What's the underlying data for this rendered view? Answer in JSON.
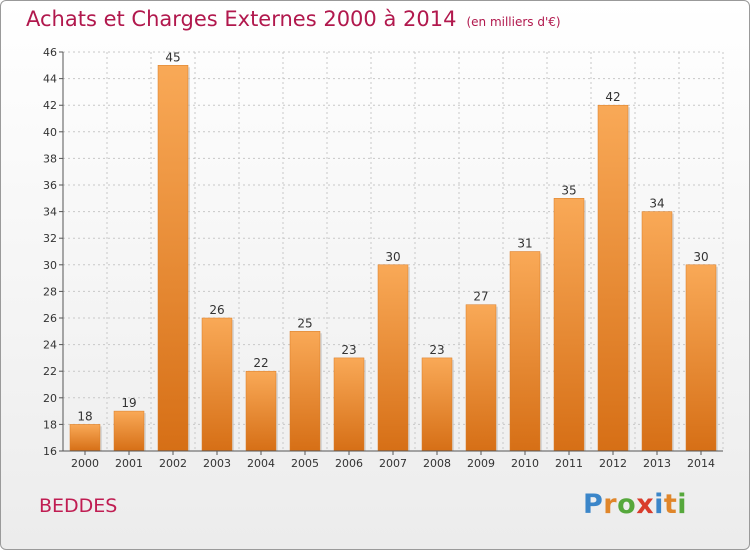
{
  "header": {
    "title": "Achats et Charges Externes 2000 à 2014",
    "unit": "(en milliers d'€)"
  },
  "footer": {
    "place": "BEDDES",
    "logo": "Proxiti"
  },
  "colors": {
    "title": "#b1184d",
    "bar_light": "#f9a957",
    "bar_dark": "#d66f16",
    "logo": [
      "#3b86c9",
      "#e0862a",
      "#56a83c",
      "#d93c2c",
      "#3b86c9",
      "#e0862a",
      "#56a83c"
    ]
  },
  "chart_data": {
    "type": "bar",
    "title": "Achats et Charges Externes 2000 à 2014",
    "subtitle": "(en milliers d'€)",
    "xlabel": "",
    "ylabel": "",
    "categories": [
      "2000",
      "2001",
      "2002",
      "2003",
      "2004",
      "2005",
      "2006",
      "2007",
      "2008",
      "2009",
      "2010",
      "2011",
      "2012",
      "2013",
      "2014"
    ],
    "values": [
      18,
      19,
      45,
      26,
      22,
      25,
      23,
      30,
      23,
      27,
      31,
      35,
      42,
      34,
      30
    ],
    "ylim": [
      16,
      46
    ],
    "yticks": [
      16,
      18,
      20,
      22,
      24,
      26,
      28,
      30,
      32,
      34,
      36,
      38,
      40,
      42,
      44,
      46
    ],
    "grid": true,
    "data_labels": true
  }
}
